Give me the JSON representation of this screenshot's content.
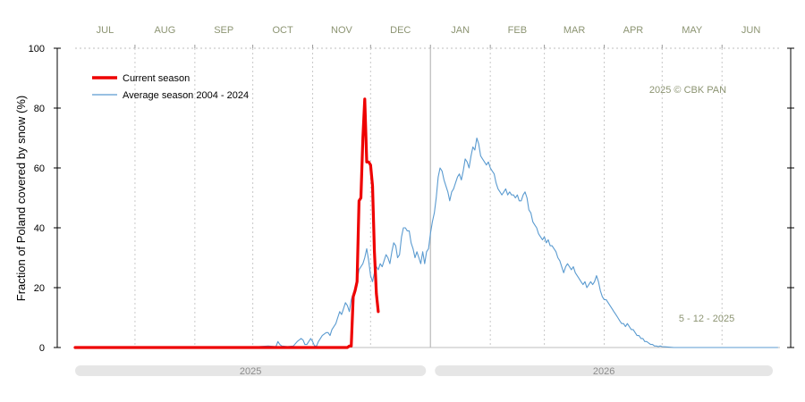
{
  "chart_data": {
    "type": "line",
    "title": "",
    "ylabel": "Fraction of  Poland  covered by snow (%)",
    "xlabel": "",
    "ylim": [
      0,
      100
    ],
    "y_ticks": [
      0,
      20,
      40,
      60,
      80,
      100
    ],
    "months": [
      "JUL",
      "AUG",
      "SEP",
      "OCT",
      "NOV",
      "DEC",
      "JAN",
      "FEB",
      "MAR",
      "APR",
      "MAY",
      "JUN"
    ],
    "years": [
      "2025",
      "2026"
    ],
    "grid": "vertical dotted at month boundaries",
    "legend_position": "top-left",
    "colors": {
      "current": "#ee0000",
      "average": "#5b9bd0",
      "month_label": "#8c9472",
      "year_bar": "#e6e6e6"
    },
    "series": [
      {
        "name": "Current season",
        "x_unit": "day of season (0 = 1 July 2025)",
        "points": [
          [
            0,
            0
          ],
          [
            120,
            0
          ],
          [
            141,
            0
          ],
          [
            142,
            0.5
          ],
          [
            143,
            0.5
          ],
          [
            144,
            17
          ],
          [
            145,
            19
          ],
          [
            146,
            22
          ],
          [
            147,
            49
          ],
          [
            148,
            50
          ],
          [
            149,
            70
          ],
          [
            150,
            83
          ],
          [
            151,
            62
          ],
          [
            152,
            62
          ],
          [
            153,
            61
          ],
          [
            154,
            54
          ],
          [
            155,
            32
          ],
          [
            156,
            18
          ],
          [
            157,
            12
          ]
        ]
      },
      {
        "name": "Average season 2004 - 2024",
        "x_unit": "day of season (0 = 1 July)",
        "points": [
          [
            0,
            0
          ],
          [
            60,
            0
          ],
          [
            80,
            0
          ],
          [
            90,
            0
          ],
          [
            95,
            0.3
          ],
          [
            100,
            0.5
          ],
          [
            104,
            0.3
          ],
          [
            105,
            2
          ],
          [
            106,
            1
          ],
          [
            107,
            0.5
          ],
          [
            110,
            0.3
          ],
          [
            113,
            0.5
          ],
          [
            115,
            2
          ],
          [
            117,
            3
          ],
          [
            118,
            2.5
          ],
          [
            119,
            1
          ],
          [
            120,
            1
          ],
          [
            121,
            2
          ],
          [
            122,
            3
          ],
          [
            123,
            2
          ],
          [
            124,
            0.5
          ],
          [
            125,
            0.5
          ],
          [
            126,
            2
          ],
          [
            127,
            3
          ],
          [
            128,
            4
          ],
          [
            129,
            4.5
          ],
          [
            130,
            5
          ],
          [
            131,
            5
          ],
          [
            132,
            4
          ],
          [
            133,
            6
          ],
          [
            134,
            7
          ],
          [
            135,
            8
          ],
          [
            136,
            10
          ],
          [
            137,
            12
          ],
          [
            138,
            11
          ],
          [
            139,
            13
          ],
          [
            140,
            15
          ],
          [
            141,
            14
          ],
          [
            142,
            12
          ],
          [
            143,
            16
          ],
          [
            144,
            18
          ],
          [
            145,
            20
          ],
          [
            146,
            22
          ],
          [
            147,
            26
          ],
          [
            148,
            27
          ],
          [
            149,
            28
          ],
          [
            150,
            30
          ],
          [
            151,
            33
          ],
          [
            152,
            29
          ],
          [
            153,
            24
          ],
          [
            154,
            22
          ],
          [
            155,
            25
          ],
          [
            156,
            27
          ],
          [
            157,
            26
          ],
          [
            158,
            28
          ],
          [
            159,
            27
          ],
          [
            160,
            29
          ],
          [
            161,
            31
          ],
          [
            162,
            30
          ],
          [
            163,
            28
          ],
          [
            164,
            32
          ],
          [
            165,
            35
          ],
          [
            166,
            34
          ],
          [
            167,
            30
          ],
          [
            168,
            31
          ],
          [
            169,
            37
          ],
          [
            170,
            40
          ],
          [
            171,
            40
          ],
          [
            172,
            39
          ],
          [
            173,
            39
          ],
          [
            174,
            35
          ],
          [
            175,
            33
          ],
          [
            176,
            30
          ],
          [
            177,
            32
          ],
          [
            178,
            30
          ],
          [
            179,
            28
          ],
          [
            180,
            32
          ],
          [
            181,
            28
          ],
          [
            182,
            32
          ],
          [
            183,
            33
          ],
          [
            184,
            38
          ],
          [
            185,
            42
          ],
          [
            186,
            45
          ],
          [
            187,
            50
          ],
          [
            188,
            57
          ],
          [
            189,
            60
          ],
          [
            190,
            59
          ],
          [
            191,
            56
          ],
          [
            192,
            54
          ],
          [
            193,
            52
          ],
          [
            194,
            49
          ],
          [
            195,
            52
          ],
          [
            196,
            53
          ],
          [
            197,
            55
          ],
          [
            198,
            57
          ],
          [
            199,
            58
          ],
          [
            200,
            56
          ],
          [
            201,
            59
          ],
          [
            202,
            63
          ],
          [
            203,
            62
          ],
          [
            204,
            60
          ],
          [
            205,
            64
          ],
          [
            206,
            67
          ],
          [
            207,
            66
          ],
          [
            208,
            70
          ],
          [
            209,
            68
          ],
          [
            210,
            64
          ],
          [
            211,
            63
          ],
          [
            212,
            62
          ],
          [
            213,
            61
          ],
          [
            214,
            62
          ],
          [
            215,
            60
          ],
          [
            216,
            59
          ],
          [
            217,
            58
          ],
          [
            218,
            55
          ],
          [
            219,
            53
          ],
          [
            220,
            52
          ],
          [
            221,
            51
          ],
          [
            222,
            52
          ],
          [
            223,
            53
          ],
          [
            224,
            51
          ],
          [
            225,
            52
          ],
          [
            226,
            51
          ],
          [
            227,
            51
          ],
          [
            228,
            50
          ],
          [
            229,
            51
          ],
          [
            230,
            49
          ],
          [
            231,
            49
          ],
          [
            232,
            51
          ],
          [
            233,
            52
          ],
          [
            234,
            50
          ],
          [
            235,
            46
          ],
          [
            236,
            45
          ],
          [
            237,
            42
          ],
          [
            238,
            41
          ],
          [
            239,
            40
          ],
          [
            240,
            38
          ],
          [
            241,
            37
          ],
          [
            242,
            36
          ],
          [
            243,
            37
          ],
          [
            244,
            35
          ],
          [
            245,
            36
          ],
          [
            246,
            34
          ],
          [
            247,
            34
          ],
          [
            248,
            33
          ],
          [
            249,
            32
          ],
          [
            250,
            30
          ],
          [
            251,
            29
          ],
          [
            252,
            27
          ],
          [
            253,
            25
          ],
          [
            254,
            27
          ],
          [
            255,
            28
          ],
          [
            256,
            27
          ],
          [
            257,
            26
          ],
          [
            258,
            27
          ],
          [
            259,
            25
          ],
          [
            260,
            24
          ],
          [
            261,
            23
          ],
          [
            262,
            22
          ],
          [
            263,
            21
          ],
          [
            264,
            22
          ],
          [
            265,
            20
          ],
          [
            266,
            21
          ],
          [
            267,
            22
          ],
          [
            268,
            21
          ],
          [
            269,
            22
          ],
          [
            270,
            24
          ],
          [
            271,
            22
          ],
          [
            272,
            19
          ],
          [
            273,
            17
          ],
          [
            274,
            16
          ],
          [
            275,
            16
          ],
          [
            276,
            15
          ],
          [
            277,
            14
          ],
          [
            278,
            13
          ],
          [
            279,
            12
          ],
          [
            280,
            11
          ],
          [
            281,
            10
          ],
          [
            282,
            9
          ],
          [
            283,
            8
          ],
          [
            284,
            8
          ],
          [
            285,
            7
          ],
          [
            286,
            8
          ],
          [
            287,
            7
          ],
          [
            288,
            6
          ],
          [
            289,
            6
          ],
          [
            290,
            5
          ],
          [
            291,
            4
          ],
          [
            292,
            4
          ],
          [
            293,
            3
          ],
          [
            294,
            3
          ],
          [
            295,
            2
          ],
          [
            296,
            2
          ],
          [
            297,
            1.5
          ],
          [
            298,
            1
          ],
          [
            299,
            1
          ],
          [
            300,
            0.5
          ],
          [
            301,
            0.5
          ],
          [
            302,
            0.3
          ],
          [
            303,
            0.5
          ],
          [
            304,
            0.3
          ],
          [
            306,
            0.2
          ],
          [
            310,
            0
          ],
          [
            330,
            0
          ],
          [
            364,
            0
          ]
        ]
      }
    ],
    "annotations": [
      "2025  © CBK PAN",
      "5 - 12 - 2025"
    ]
  }
}
